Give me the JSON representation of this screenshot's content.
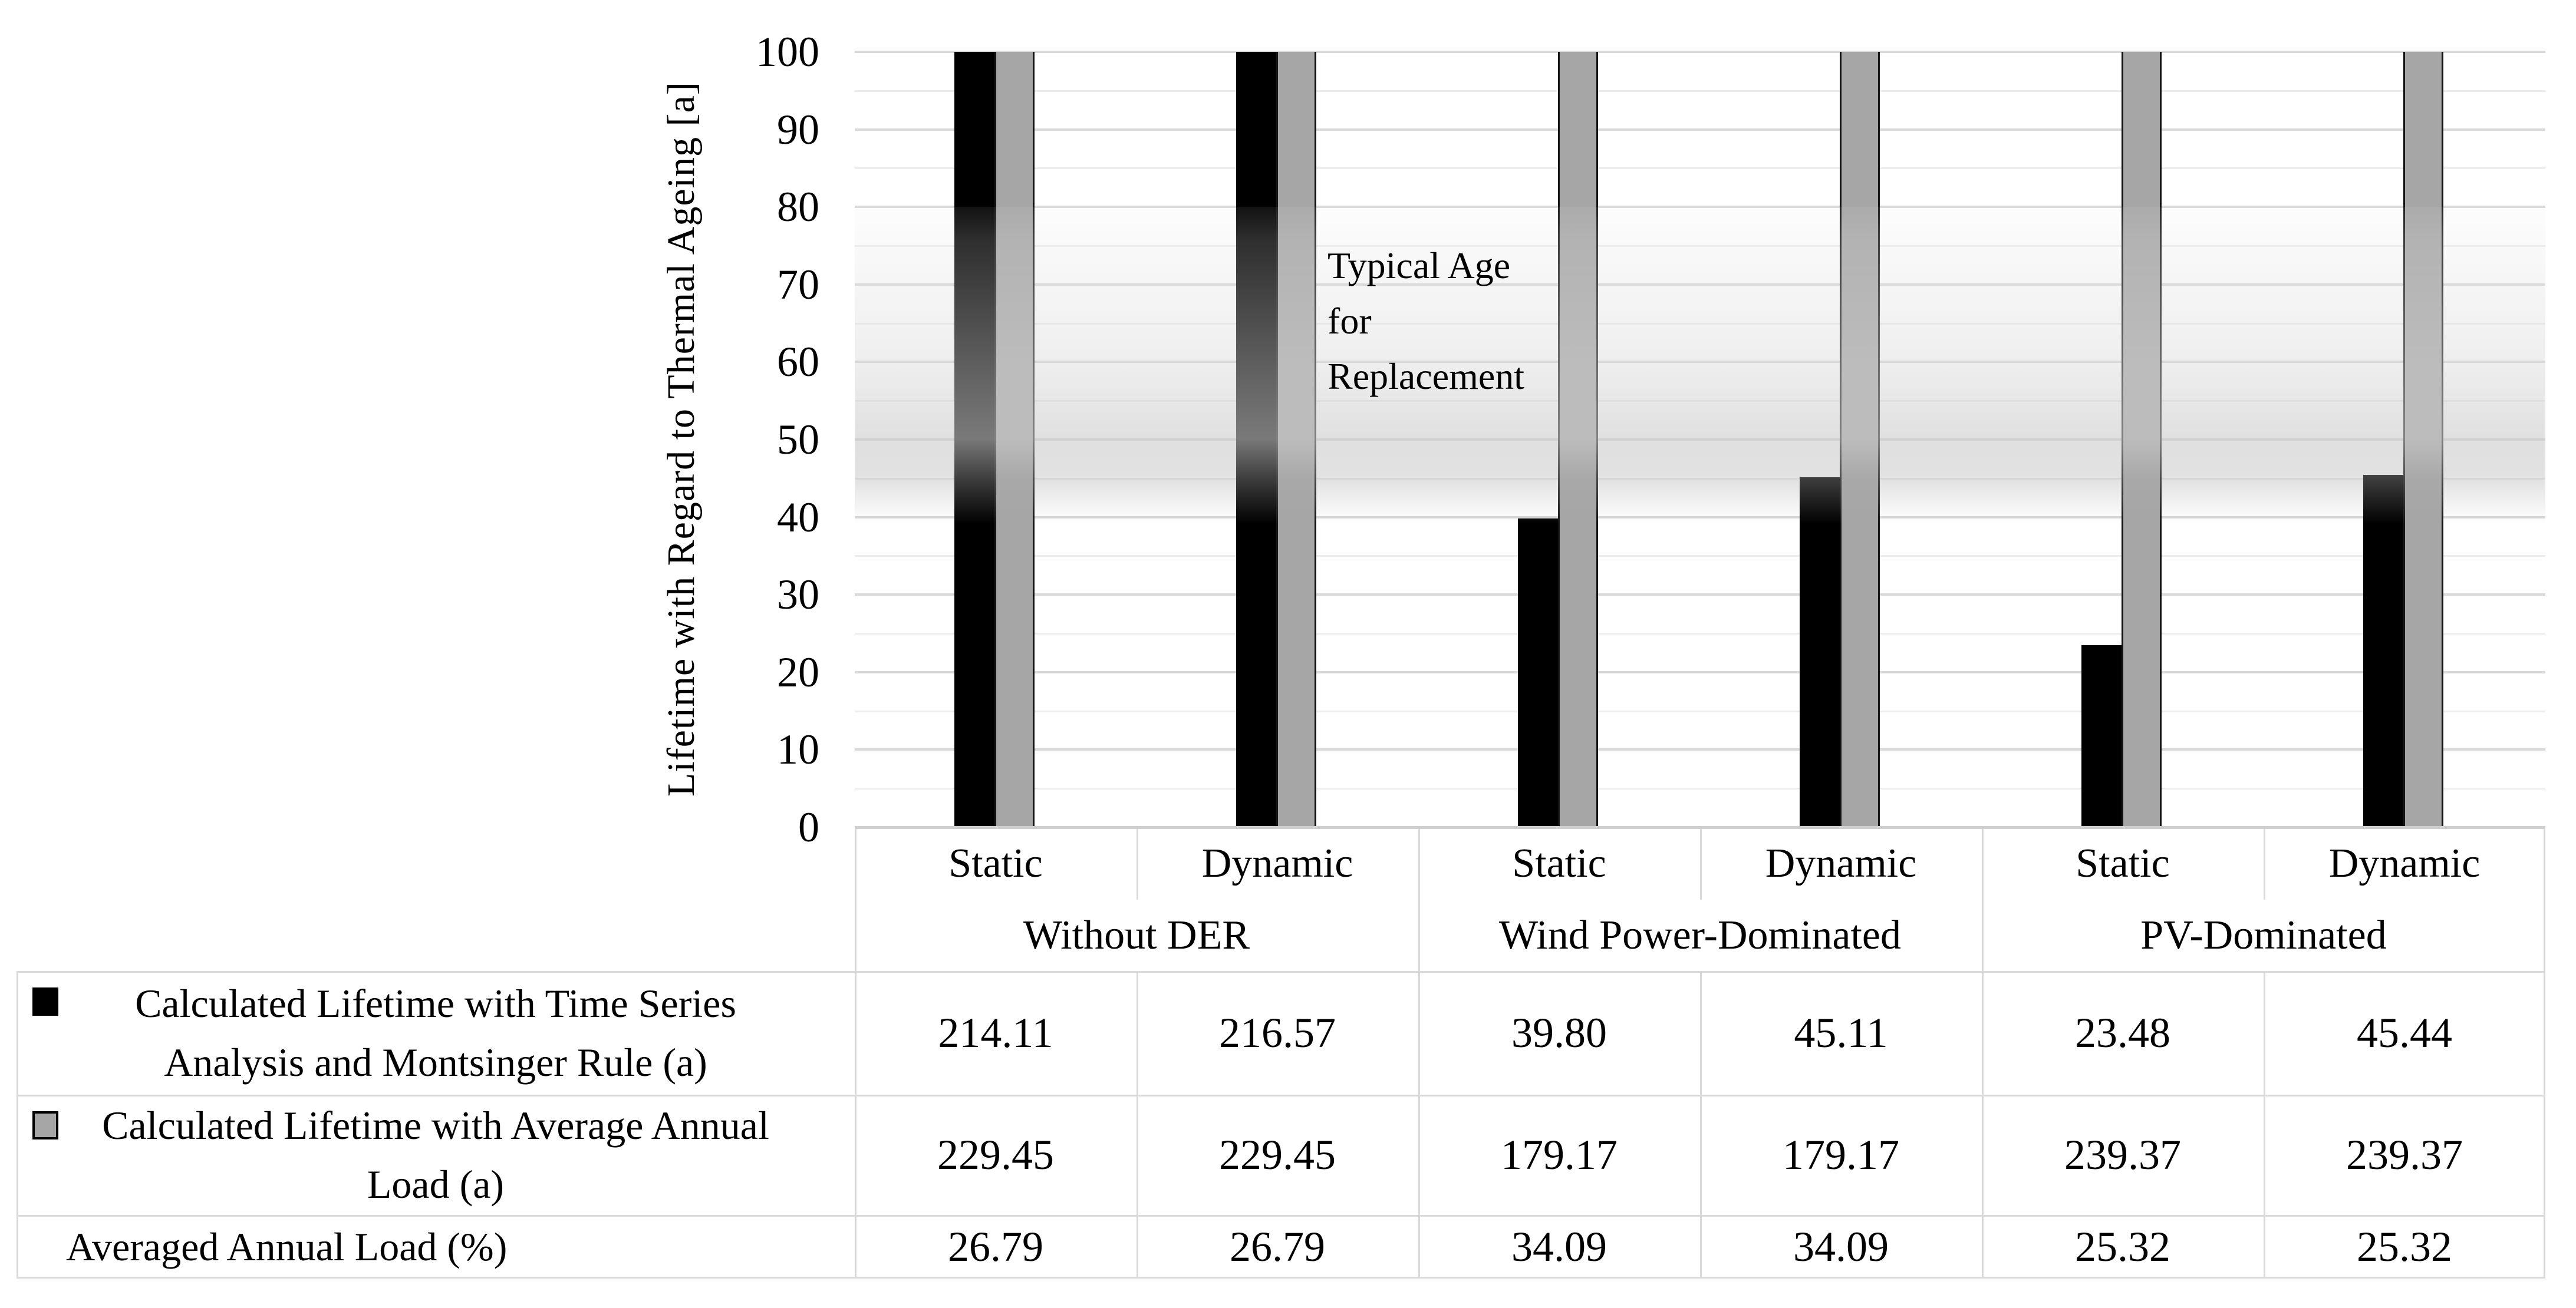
{
  "chart_data": {
    "type": "bar",
    "title": "",
    "ylabel": "Lifetime with Regard to Thermal Ageing [a]",
    "ylim": [
      0,
      100
    ],
    "yticks": [
      0,
      10,
      20,
      30,
      40,
      50,
      60,
      70,
      80,
      90,
      100
    ],
    "grid": "major 10 / minor 5, horizontal only",
    "legend_position": "table below chart",
    "groups": [
      "Without DER",
      "Wind Power-Dominated",
      "PV-Dominated"
    ],
    "categories": [
      "Static",
      "Dynamic",
      "Static",
      "Dynamic",
      "Static",
      "Dynamic"
    ],
    "series": [
      {
        "name": "Calculated Lifetime with Time Series Analysis and Montsinger Rule (a)",
        "color": "#000000",
        "values": [
          214.11,
          216.57,
          39.8,
          45.11,
          23.48,
          45.44
        ]
      },
      {
        "name": "Calculated Lifetime with Average Annual Load (a)",
        "color": "#a6a6a6",
        "values": [
          229.45,
          229.45,
          179.17,
          179.17,
          239.37,
          239.37
        ]
      }
    ],
    "extra_row": {
      "name": "Averaged Annual Load (%)",
      "values": [
        26.79,
        26.79,
        34.09,
        34.09,
        25.32,
        25.32
      ]
    },
    "band": {
      "from": 80,
      "to": 41,
      "label": "Typical Age\nfor\nReplacement"
    }
  },
  "annotation_text": "Typical Age\nfor\nReplacement",
  "y_axis_title": "Lifetime with Regard to Thermal Ageing [a]",
  "table": {
    "rows": [
      {
        "label": "Calculated Lifetime with Time Series\nAnalysis and Montsinger Rule (a)",
        "marker": "black",
        "values": [
          "214.11",
          "216.57",
          "39.80",
          "45.11",
          "23.48",
          "45.44"
        ]
      },
      {
        "label": "Calculated Lifetime with Average Annual\nLoad (a)",
        "marker": "gray",
        "values": [
          "229.45",
          "229.45",
          "179.17",
          "179.17",
          "239.37",
          "239.37"
        ]
      },
      {
        "label": "Averaged Annual Load (%)",
        "marker": null,
        "values": [
          "26.79",
          "26.79",
          "34.09",
          "34.09",
          "25.32",
          "25.32"
        ]
      }
    ]
  },
  "colors": {
    "bar_black": "#000000",
    "bar_gray": "#a6a6a6",
    "grid_major": "#d9d9d9",
    "grid_minor": "#ededed",
    "axis_line": "#cfcfcf",
    "table_border": "#d9d9d9"
  }
}
